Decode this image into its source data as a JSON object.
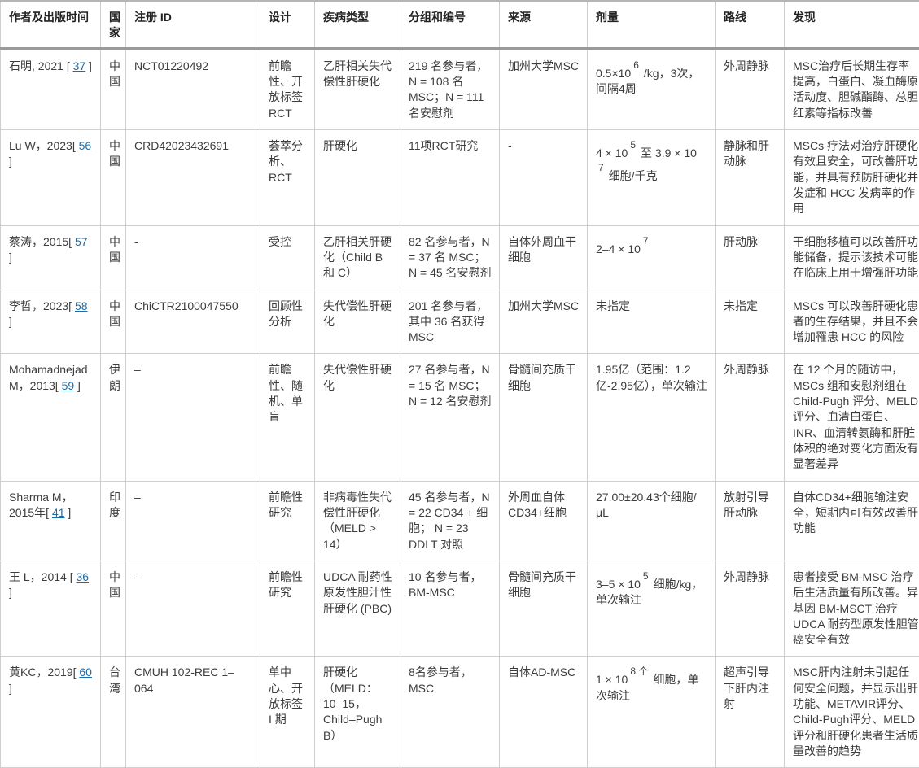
{
  "colors": {
    "link": "#1b6ca8",
    "cell_border": "#cfcfcf",
    "header_rule": "#9a9a9a",
    "text": "#3c3c3c"
  },
  "table": {
    "columns": [
      {
        "key": "author",
        "label": "作者及出版时间"
      },
      {
        "key": "country",
        "label": "国家"
      },
      {
        "key": "registration_id",
        "label": "注册 ID"
      },
      {
        "key": "design",
        "label": "设计"
      },
      {
        "key": "disease",
        "label": "疾病类型"
      },
      {
        "key": "grouping",
        "label": "分组和编号"
      },
      {
        "key": "source",
        "label": "来源"
      },
      {
        "key": "dose",
        "label": "剂量"
      },
      {
        "key": "route",
        "label": "路线"
      },
      {
        "key": "findings",
        "label": "发现"
      }
    ],
    "rows": [
      {
        "author": [
          {
            "t": "石明, 2021 [ "
          },
          {
            "t": "37",
            "link": true
          },
          {
            "t": " ]"
          }
        ],
        "country": "中国",
        "registration_id": "NCT01220492",
        "design": "前瞻性、开放标签RCT",
        "disease": "乙肝相关失代偿性肝硬化",
        "grouping": "219 名参与者，N = 108 名 MSC；N = 111 名安慰剂",
        "source": "加州大学MSC",
        "dose": [
          {
            "t": "0.5×10"
          },
          {
            "t": "6",
            "sup": true
          },
          {
            "t": "/kg，3次，间隔4周"
          }
        ],
        "route": "外周静脉",
        "findings": "MSC治疗后长期生存率提高，白蛋白、凝血酶原活动度、胆碱酯酶、总胆红素等指标改善"
      },
      {
        "author": [
          {
            "t": "Lu W，2023[ "
          },
          {
            "t": "56",
            "link": true
          },
          {
            "t": " ]"
          }
        ],
        "country": "中国",
        "registration_id": "CRD42023432691",
        "design": "荟萃分析、RCT",
        "disease": "肝硬化",
        "grouping": "11项RCT研究",
        "source": "-",
        "dose": [
          {
            "t": "4 × 10"
          },
          {
            "t": "5",
            "sup": true
          },
          {
            "t": "至 3.9 × 10"
          },
          {
            "t": "7",
            "sup": true
          },
          {
            "t": "细胞/千克"
          }
        ],
        "route": "静脉和肝动脉",
        "findings": "MSCs 疗法对治疗肝硬化有效且安全，可改善肝功能，并具有预防肝硬化并发症和 HCC 发病率的作用"
      },
      {
        "author": [
          {
            "t": "蔡涛，2015[ "
          },
          {
            "t": "57",
            "link": true
          },
          {
            "t": " ]"
          }
        ],
        "country": "中国",
        "registration_id": "-",
        "design": "受控",
        "disease": "乙肝相关肝硬化（Child B 和 C）",
        "grouping": "82 名参与者，N = 37 名 MSC； N = 45 名安慰剂",
        "source": "自体外周血干细胞",
        "dose": [
          {
            "t": "2–4 × 10"
          },
          {
            "t": "7",
            "sup": true
          }
        ],
        "route": "肝动脉",
        "findings": "干细胞移植可以改善肝功能储备，提示该技术可能在临床上用于增强肝功能"
      },
      {
        "author": [
          {
            "t": "李哲，2023[ "
          },
          {
            "t": "58",
            "link": true
          },
          {
            "t": " ]"
          }
        ],
        "country": "中国",
        "registration_id": "ChiCTR2100047550",
        "design": "回顾性分析",
        "disease": "失代偿性肝硬化",
        "grouping": "201 名参与者，其中 36 名获得 MSC",
        "source": "加州大学MSC",
        "dose": [
          {
            "t": "未指定"
          }
        ],
        "route": "未指定",
        "findings": "MSCs 可以改善肝硬化患者的生存结果，并且不会增加罹患 HCC 的风险"
      },
      {
        "author": [
          {
            "t": "Mohamadnejad M，2013[ "
          },
          {
            "t": "59",
            "link": true
          },
          {
            "t": " ]"
          }
        ],
        "country": "伊朗",
        "registration_id": "–",
        "design": "前瞻性、随机、单盲",
        "disease": "失代偿性肝硬化",
        "grouping": "27 名参与者，N = 15 名 MSC； N = 12 名安慰剂",
        "source": "骨髓间充质干细胞",
        "dose": [
          {
            "t": "1.95亿（范围：1.2亿-2.95亿），单次输注"
          }
        ],
        "route": "外周静脉",
        "findings": "在 12 个月的随访中，MSCs 组和安慰剂组在 Child-Pugh 评分、MELD 评分、血清白蛋白、INR、血清转氨酶和肝脏体积的绝对变化方面没有显著差异"
      },
      {
        "author": [
          {
            "t": "Sharma M，2015年[ "
          },
          {
            "t": "41",
            "link": true
          },
          {
            "t": " ]"
          }
        ],
        "country": "印度",
        "registration_id": "–",
        "design": "前瞻性研究",
        "disease": "非病毒性失代偿性肝硬化（MELD > 14）",
        "grouping": "45 名参与者，N = 22 CD34 + 细胞； N = 23 DDLT 对照",
        "source": "外周血自体CD34+细胞",
        "dose": [
          {
            "t": "27.00±20.43个细胞/μL"
          }
        ],
        "route": "放射引导肝动脉",
        "findings": "自体CD34+细胞输注安全，短期内可有效改善肝功能"
      },
      {
        "author": [
          {
            "t": "王 L，2014 [ "
          },
          {
            "t": "36",
            "link": true
          },
          {
            "t": " ]"
          }
        ],
        "country": "中国",
        "registration_id": "–",
        "design": "前瞻性研究",
        "disease": "UDCA 耐药性原发性胆汁性肝硬化 (PBC)",
        "grouping": "10 名参与者，BM-MSC",
        "source": "骨髓间充质干细胞",
        "dose": [
          {
            "t": "3–5 × 10"
          },
          {
            "t": "5",
            "sup": true
          },
          {
            "t": "细胞/kg，单次输注"
          }
        ],
        "route": "外周静脉",
        "findings": "患者接受 BM-MSC 治疗后生活质量有所改善。异基因 BM-MSCT 治疗 UDCA 耐药型原发性胆管癌安全有效"
      },
      {
        "author": [
          {
            "t": "黄KC，2019[ "
          },
          {
            "t": "60",
            "link": true
          },
          {
            "t": " ]"
          }
        ],
        "country": "台湾",
        "registration_id": "CMUH 102-REC 1–064",
        "design": "单中心、开放标签 I 期",
        "disease": "肝硬化（MELD：10–15，Child–Pugh B）",
        "grouping": "8名参与者，MSC",
        "source": "自体AD-MSC",
        "dose": [
          {
            "t": "1 × 10"
          },
          {
            "t": "8 个",
            "sup": true
          },
          {
            "t": "细胞，单次输注"
          }
        ],
        "route": "超声引导下肝内注射",
        "findings": "MSC肝内注射未引起任何安全问题，并显示出肝功能、METAVIR评分、Child-Pugh评分、MELD评分和肝硬化患者生活质量改善的趋势"
      }
    ]
  }
}
